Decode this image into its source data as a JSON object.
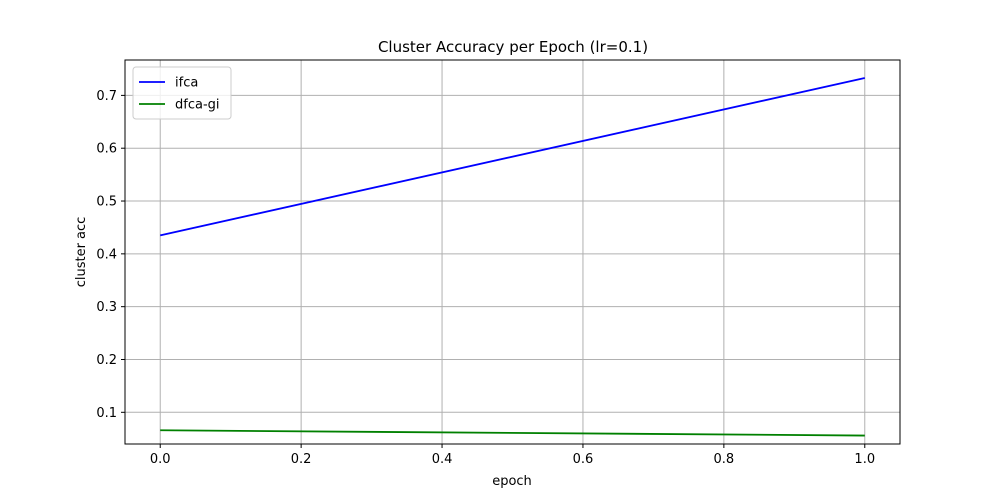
{
  "chart_data": {
    "type": "line",
    "title": "Cluster Accuracy per Epoch (lr=0.1)",
    "xlabel": "epoch",
    "ylabel": "cluster acc",
    "xlim": [
      -0.05,
      1.05
    ],
    "ylim": [
      0.04,
      0.767
    ],
    "xticks": [
      0.0,
      0.2,
      0.4,
      0.6,
      0.8,
      1.0
    ],
    "xtick_labels": [
      "0.0",
      "0.2",
      "0.4",
      "0.6",
      "0.8",
      "1.0"
    ],
    "yticks": [
      0.1,
      0.2,
      0.3,
      0.4,
      0.5,
      0.6,
      0.7
    ],
    "ytick_labels": [
      "0.1",
      "0.2",
      "0.3",
      "0.4",
      "0.5",
      "0.6",
      "0.7"
    ],
    "grid": true,
    "legend_position": "top-left",
    "x": [
      0,
      1
    ],
    "series": [
      {
        "name": "ifca",
        "values": [
          0.435,
          0.733
        ],
        "color": "#0000ff"
      },
      {
        "name": "dfca-gi",
        "values": [
          0.066,
          0.056
        ],
        "color": "#008000"
      }
    ]
  }
}
